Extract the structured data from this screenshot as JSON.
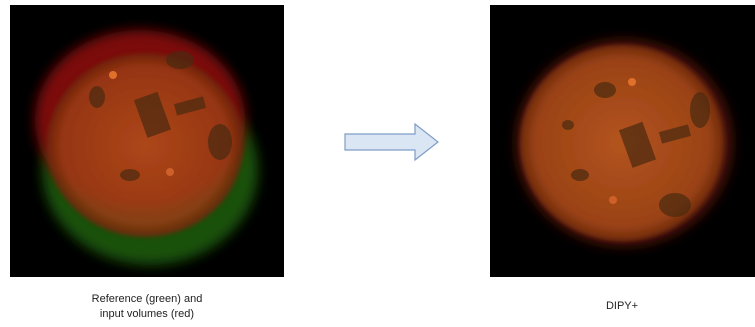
{
  "left_panel": {
    "caption_lines": [
      "Reference (green) and",
      "input volumes (red)"
    ]
  },
  "right_panel": {
    "caption_lines": [
      "DIPY+"
    ]
  }
}
